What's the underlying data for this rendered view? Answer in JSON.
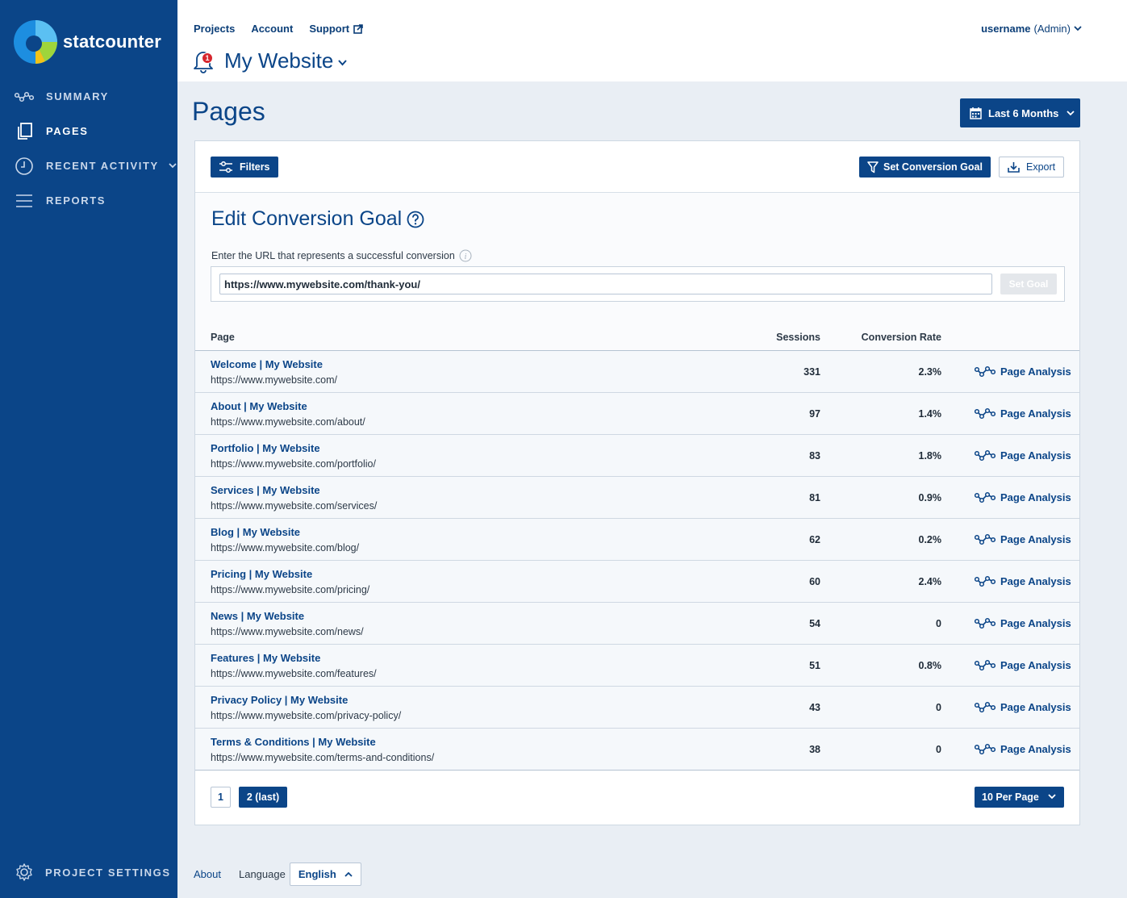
{
  "brand": {
    "name": "statcounter"
  },
  "sidebar": {
    "items": [
      {
        "label": "SUMMARY",
        "icon": "summary-icon"
      },
      {
        "label": "PAGES",
        "icon": "pages-icon",
        "active": true
      },
      {
        "label": "RECENT ACTIVITY",
        "icon": "clock-icon"
      },
      {
        "label": "REPORTS",
        "icon": "reports-icon"
      }
    ],
    "settings_label": "PROJECT SETTINGS"
  },
  "topnav": {
    "projects": "Projects",
    "account": "Account",
    "support": "Support"
  },
  "user": {
    "name": "username",
    "role": "(Admin)"
  },
  "site": {
    "name": "My Website",
    "notifications": "1"
  },
  "page": {
    "title": "Pages",
    "date_range": "Last 6 Months"
  },
  "toolbar": {
    "filters": "Filters",
    "set_goal": "Set Conversion Goal",
    "export": "Export"
  },
  "goal": {
    "title": "Edit Conversion Goal",
    "label": "Enter the URL that represents a successful conversion",
    "value": "https://www.mywebsite.com/thank-you/",
    "button": "Set Goal"
  },
  "table": {
    "headers": {
      "page": "Page",
      "sessions": "Sessions",
      "conversion": "Conversion Rate"
    },
    "action_label": "Page Analysis",
    "rows": [
      {
        "title": "Welcome | My Website",
        "url": "https://www.mywebsite.com/",
        "sessions": "331",
        "conversion": "2.3%"
      },
      {
        "title": "About | My Website",
        "url": "https://www.mywebsite.com/about/",
        "sessions": "97",
        "conversion": "1.4%"
      },
      {
        "title": "Portfolio | My Website",
        "url": "https://www.mywebsite.com/portfolio/",
        "sessions": "83",
        "conversion": "1.8%"
      },
      {
        "title": "Services | My Website",
        "url": "https://www.mywebsite.com/services/",
        "sessions": "81",
        "conversion": "0.9%"
      },
      {
        "title": "Blog | My Website",
        "url": "https://www.mywebsite.com/blog/",
        "sessions": "62",
        "conversion": "0.2%"
      },
      {
        "title": "Pricing | My Website",
        "url": "https://www.mywebsite.com/pricing/",
        "sessions": "60",
        "conversion": "2.4%"
      },
      {
        "title": "News | My Website",
        "url": "https://www.mywebsite.com/news/",
        "sessions": "54",
        "conversion": "0"
      },
      {
        "title": "Features | My Website",
        "url": "https://www.mywebsite.com/features/",
        "sessions": "51",
        "conversion": "0.8%"
      },
      {
        "title": "Privacy Policy | My Website",
        "url": "https://www.mywebsite.com/privacy-policy/",
        "sessions": "43",
        "conversion": "0"
      },
      {
        "title": "Terms & Conditions | My Website",
        "url": "https://www.mywebsite.com/terms-and-conditions/",
        "sessions": "38",
        "conversion": "0"
      }
    ]
  },
  "pagination": {
    "page1": "1",
    "page2": "2 (last)",
    "per_page": "10 Per Page"
  },
  "footer": {
    "about": "About",
    "language_label": "Language",
    "language": "English"
  },
  "colors": {
    "primary": "#0b4588",
    "sidebar": "#0b4588",
    "background": "#e9eef4",
    "badge": "#d6262e"
  }
}
